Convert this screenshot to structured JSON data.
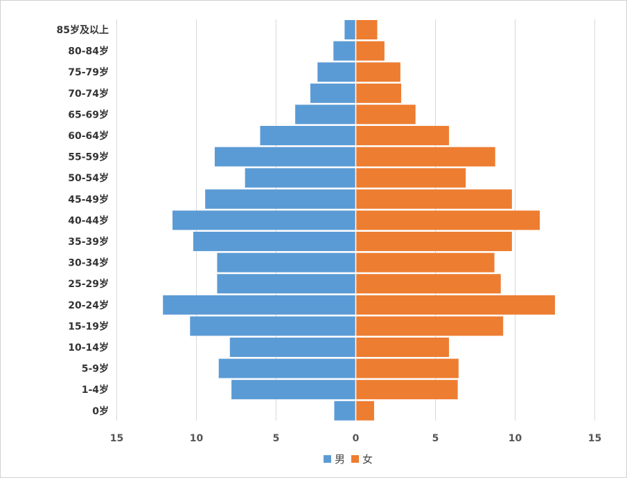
{
  "chart_data": {
    "type": "bar",
    "orientation": "horizontal",
    "layout": "population-pyramid",
    "categories": [
      "0岁",
      "1-4岁",
      "5-9岁",
      "10-14岁",
      "15-19岁",
      "20-24岁",
      "25-29岁",
      "30-34岁",
      "35-39岁",
      "40-44岁",
      "45-49岁",
      "50-54岁",
      "55-59岁",
      "60-64岁",
      "65-69岁",
      "70-74岁",
      "75-79岁",
      "80-84岁",
      "85岁及以上"
    ],
    "series": [
      {
        "name": "男",
        "color": "#5b9bd5",
        "values": [
          1.35,
          7.8,
          8.6,
          7.9,
          10.4,
          12.1,
          8.7,
          8.7,
          10.2,
          11.5,
          9.45,
          6.95,
          8.85,
          6.0,
          3.8,
          2.85,
          2.4,
          1.4,
          0.7
        ]
      },
      {
        "name": "女",
        "color": "#ed7d31",
        "values": [
          1.15,
          6.4,
          6.45,
          5.85,
          9.25,
          12.5,
          9.1,
          8.7,
          9.8,
          11.55,
          9.8,
          6.9,
          8.75,
          5.85,
          3.75,
          2.85,
          2.8,
          1.8,
          1.35
        ]
      }
    ],
    "xlim": [
      -15,
      15
    ],
    "x_ticks": [
      -15,
      -10,
      -5,
      0,
      5,
      10,
      15
    ],
    "x_tick_labels": [
      "15",
      "10",
      "5",
      "0",
      "5",
      "10",
      "15"
    ],
    "grid": "vertical",
    "legend": "bottom-center",
    "title": "",
    "xlabel": "",
    "ylabel": ""
  }
}
